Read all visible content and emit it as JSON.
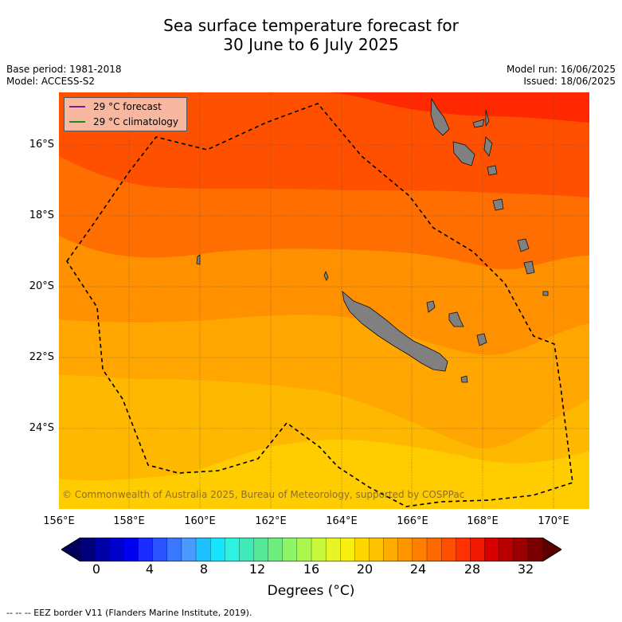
{
  "title_line1": "Sea surface temperature forecast for",
  "title_line2": "30 June to 6 July 2025",
  "base_period": "Base period: 1981-2018",
  "model": "Model: ACCESS-S2",
  "model_run": "Model run: 16/06/2025",
  "issued": "Issued: 18/06/2025",
  "legend": {
    "forecast": "29 °C  forecast",
    "climatology": "29 °C  climatology",
    "forecast_color": "#7a1d8c",
    "climatology_color": "#1a8a1a"
  },
  "lat_labels": [
    "16°S",
    "18°S",
    "20°S",
    "22°S",
    "24°S"
  ],
  "lon_labels": [
    "156°E",
    "158°E",
    "160°E",
    "162°E",
    "164°E",
    "166°E",
    "168°E",
    "170°E"
  ],
  "credit": "© Commonwealth of Australia 2025, Bureau of Meteorology, supported by COSPPac",
  "colorbar": {
    "ticks": [
      "0",
      "4",
      "8",
      "12",
      "16",
      "20",
      "24",
      "28",
      "32"
    ],
    "title": "Degrees (°C)",
    "colors": [
      "#00007a",
      "#0000a8",
      "#0000cc",
      "#0000f0",
      "#1a2cff",
      "#2a52ff",
      "#3a78ff",
      "#4a9aff",
      "#1fc0ff",
      "#18e4ff",
      "#30f2e0",
      "#40eab8",
      "#55e696",
      "#6cee7c",
      "#8cf666",
      "#aaf84e",
      "#c8f83a",
      "#e6f428",
      "#f8ee10",
      "#ffd600",
      "#ffc200",
      "#ffac00",
      "#ff9600",
      "#ff8000",
      "#ff6a00",
      "#ff5000",
      "#ff3200",
      "#f01800",
      "#d60000",
      "#b80000",
      "#9a0000",
      "#7a0000"
    ]
  },
  "eez_note": "--  --  -- EEZ border V11 (Flanders Marine Institute, 2019)."
}
